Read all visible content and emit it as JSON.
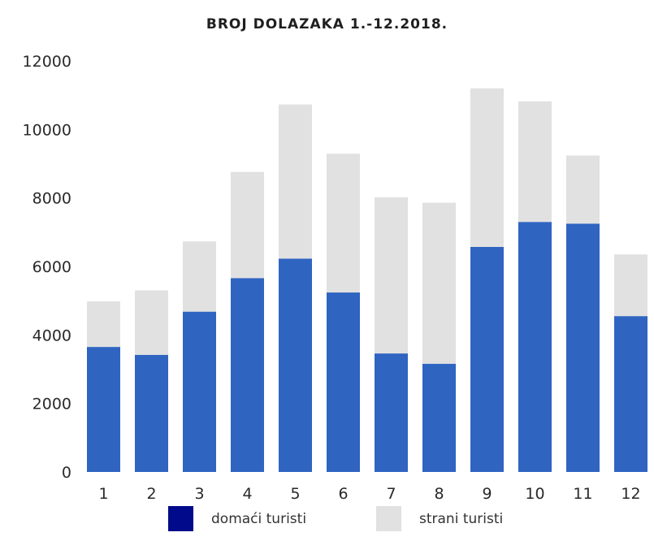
{
  "chart_data": {
    "type": "bar",
    "stacked": true,
    "title": "BROJ DOLAZAKA 1.-12.2018.",
    "xlabel": "",
    "ylabel": "",
    "categories": [
      "1",
      "2",
      "3",
      "4",
      "5",
      "6",
      "7",
      "8",
      "9",
      "10",
      "11",
      "12"
    ],
    "ylim": [
      0,
      12000
    ],
    "yticks": [
      0,
      2000,
      4000,
      6000,
      8000,
      10000,
      12000
    ],
    "grid": false,
    "legend_position": "bottom",
    "series": [
      {
        "name": "domaći turisti",
        "color": "#2f64c1",
        "legend_color": "#000a8a",
        "values": [
          3650,
          3420,
          4680,
          5660,
          6230,
          5240,
          3460,
          3160,
          6570,
          7300,
          7250,
          4550
        ]
      },
      {
        "name": "strani turisti",
        "color": "#e1e1e1",
        "values": [
          1330,
          1880,
          2050,
          3100,
          4500,
          4050,
          4560,
          4700,
          4630,
          3520,
          1990,
          1800
        ]
      }
    ]
  }
}
